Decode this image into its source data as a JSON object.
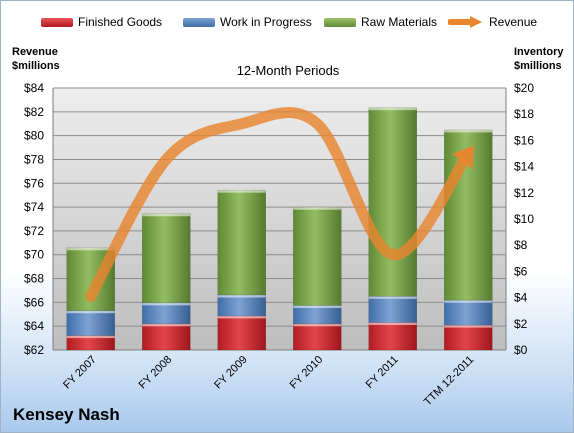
{
  "chart_data": {
    "type": "bar",
    "subtitle": "12-Month Periods",
    "company": "Kensey Nash",
    "left_axis": {
      "title_line1": "Revenue",
      "title_line2": "$millions",
      "min": 62,
      "max": 84,
      "step": 2,
      "prefix": "$"
    },
    "right_axis": {
      "title_line1": "Inventory",
      "title_line2": "$millions",
      "min": 0,
      "max": 20,
      "step": 2,
      "prefix": "$"
    },
    "categories": [
      "FY 2007",
      "FY 2008",
      "FY 2009",
      "FY 2010",
      "FY 2011",
      "TTM 12-2011"
    ],
    "stacked_series": [
      {
        "name": "Finished Goods",
        "axis": "right",
        "color": "#cc2229",
        "values": [
          1.1,
          2.0,
          2.6,
          2.0,
          2.1,
          1.9
        ]
      },
      {
        "name": "Work in Progress",
        "axis": "right",
        "color": "#4f81bd",
        "values": [
          1.9,
          1.6,
          1.6,
          1.4,
          2.0,
          1.9
        ]
      },
      {
        "name": "Raw Materials",
        "axis": "right",
        "color": "#77a046",
        "values": [
          4.8,
          6.8,
          8.0,
          7.5,
          14.4,
          13.0
        ]
      }
    ],
    "line_series": {
      "name": "Revenue",
      "axis": "left",
      "color": "#e8852e",
      "values": [
        66.5,
        78.0,
        81.0,
        81.0,
        70.0,
        78.5
      ]
    },
    "legend_position": "top",
    "grid": true
  }
}
